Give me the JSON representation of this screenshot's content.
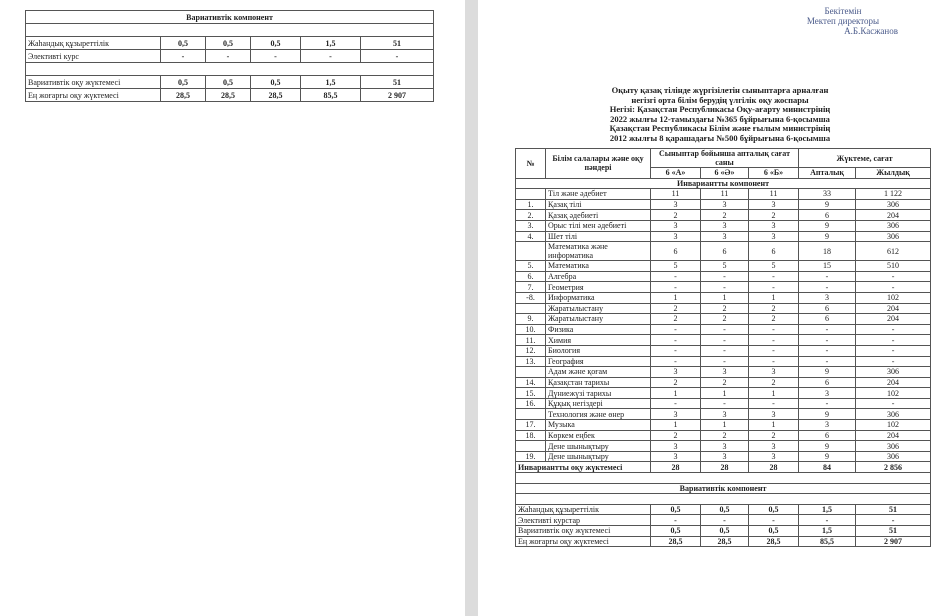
{
  "left": {
    "title": "Вариативтік компонент",
    "rows": [
      [
        "Жаһандық құзыреттілік",
        "0,5",
        "0,5",
        "0,5",
        "1,5",
        "51"
      ],
      [
        "Элективті курс",
        "-",
        "-",
        "-",
        "-",
        "-"
      ],
      [
        "Вариативтік оқу жүктемесі",
        "0,5",
        "0,5",
        "0,5",
        "1,5",
        "51"
      ],
      [
        "Ең жоғарғы оқу жүктемесі",
        "28,5",
        "28,5",
        "28,5",
        "85,5",
        "2 907"
      ]
    ]
  },
  "right": {
    "approval": [
      "Бекітемін",
      "Мектеп директоры",
      "А.Б.Касжанов"
    ],
    "title_lines": [
      "Оқыту қазақ тілінде жүргізілетін сыныптарға арналған",
      "негізгі орта білім берудің үлгілік оқу жоспары",
      "Негізі: Қазақстан Республикасы Оқу-ағарту министрінің",
      "2022 жылғы 12-тамыздағы №365 бұйрығына 6-қосымша",
      "Қазақстан Республикасы Білім және ғылым министрінің",
      "2012 жылғы 8 қарашадағы №500 бұйрығына 6-қосымша"
    ],
    "table": {
      "header": {
        "number": "№",
        "subject": "Білім салалары және оқу пәндері",
        "weekly_group": "Сыныптар бойынша апталық сағат саны",
        "load_group": "Жүктеме, сағат",
        "classes": [
          "6 «А»",
          "6 «Ә»",
          "6 «Б»"
        ],
        "loads": [
          "Апталық",
          "Жылдық"
        ]
      },
      "invariant_title": "Инвариантты компонент",
      "rows": [
        [
          "",
          "Тіл және әдебиет",
          "11",
          "11",
          "11",
          "33",
          "1 122"
        ],
        [
          "1.",
          "Қазақ тілі",
          "3",
          "3",
          "3",
          "9",
          "306"
        ],
        [
          "2.",
          "Қазақ әдебиеті",
          "2",
          "2",
          "2",
          "6",
          "204"
        ],
        [
          "3.",
          "Орыс тілі мен әдебиеті",
          "3",
          "3",
          "3",
          "9",
          "306"
        ],
        [
          "4.",
          "Шет тілі",
          "3",
          "3",
          "3",
          "9",
          "306"
        ],
        [
          "",
          "Математика және информатика",
          "6",
          "6",
          "6",
          "18",
          "612"
        ],
        [
          "5.",
          "Математика",
          "5",
          "5",
          "5",
          "15",
          "510"
        ],
        [
          "6.",
          "Алгебра",
          "-",
          "-",
          "-",
          "-",
          "-"
        ],
        [
          "7.",
          "Геометрия",
          "-",
          "-",
          "-",
          "-",
          "-"
        ],
        [
          "-8.",
          "Информатика",
          "1",
          "1",
          "1",
          "3",
          "102"
        ],
        [
          "",
          "Жаратылыстану",
          "2",
          "2",
          "2",
          "6",
          "204"
        ],
        [
          "9.",
          "Жаратылыстану",
          "2",
          "2",
          "2",
          "6",
          "204"
        ],
        [
          "10.",
          "Физика",
          "-",
          "-",
          "-",
          "-",
          "-"
        ],
        [
          "11.",
          "Химия",
          "-",
          "-",
          "-",
          "-",
          "-"
        ],
        [
          "12.",
          "Биология",
          "-",
          "-",
          "-",
          "-",
          "-"
        ],
        [
          "13.",
          "География",
          "-",
          "-",
          "-",
          "-",
          "-"
        ],
        [
          "",
          "Адам және қоғам",
          "3",
          "3",
          "3",
          "9",
          "306"
        ],
        [
          "14.",
          "Қазақстан тарихы",
          "2",
          "2",
          "2",
          "6",
          "204"
        ],
        [
          "15.",
          "Дүниежүзі тарихы",
          "1",
          "1",
          "1",
          "3",
          "102"
        ],
        [
          "16.",
          "Құқық негіздері",
          "-",
          "-",
          "-",
          "-",
          "-"
        ],
        [
          "",
          "Технология және өнер",
          "3",
          "3",
          "3",
          "9",
          "306"
        ],
        [
          "17.",
          "Музыка",
          "1",
          "1",
          "1",
          "3",
          "102"
        ],
        [
          "18.",
          "Көркем еңбек",
          "2",
          "2",
          "2",
          "6",
          "204"
        ],
        [
          "",
          "Дене шынықтыру",
          "3",
          "3",
          "3",
          "9",
          "306"
        ],
        [
          "19.",
          "Дене шынықтыру",
          "3",
          "3",
          "3",
          "9",
          "306"
        ]
      ],
      "total": [
        "Инвариантты оқу жүктемесі",
        "28",
        "28",
        "28",
        "84",
        "2 856"
      ],
      "variative_title": "Вариативтік компонент",
      "variative_rows": [
        [
          "Жаһандық құзыреттілік",
          "0,5",
          "0,5",
          "0,5",
          "1,5",
          "51"
        ],
        [
          "Элективті курстар",
          "-",
          "-",
          "-",
          "-",
          "-"
        ],
        [
          "Вариативтік оқу жүктемесі",
          "0,5",
          "0,5",
          "0,5",
          "1,5",
          "51"
        ],
        [
          "Ең жоғарғы оқу жүктемесі",
          "28,5",
          "28,5",
          "28,5",
          "85,5",
          "2 907"
        ]
      ]
    }
  }
}
